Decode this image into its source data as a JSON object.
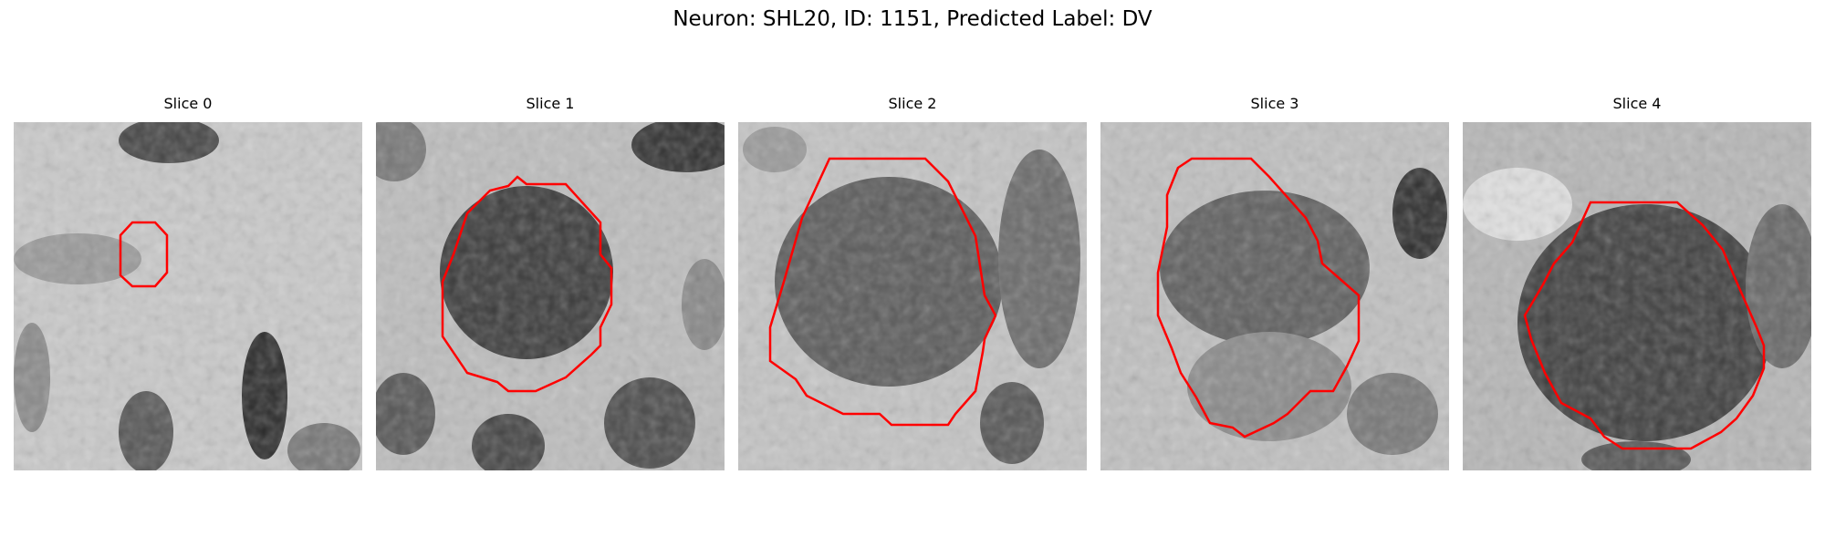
{
  "figure": {
    "title": "Neuron: SHL20, ID: 1151, Predicted Label: DV"
  },
  "colors": {
    "contour": "#ff0000",
    "background": "#ffffff"
  },
  "panels": [
    {
      "title": "Slice 0"
    },
    {
      "title": "Slice 1"
    },
    {
      "title": "Slice 2"
    },
    {
      "title": "Slice 3"
    },
    {
      "title": "Slice 4"
    }
  ]
}
